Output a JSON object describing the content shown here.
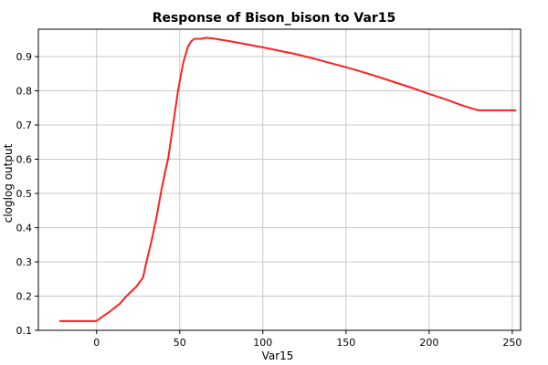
{
  "chart_data": {
    "type": "line",
    "title": "Response of Bison_bison to Var15",
    "xlabel": "Var15",
    "ylabel": "cloglog output",
    "xlim": [
      -35,
      255
    ],
    "ylim": [
      0.1,
      0.98
    ],
    "xticks": [
      0,
      50,
      100,
      150,
      200,
      250
    ],
    "yticks": [
      0.1,
      0.2,
      0.3,
      0.4,
      0.5,
      0.6,
      0.7,
      0.8,
      0.9
    ],
    "grid": true,
    "colors": {
      "line": "#ff2020",
      "grid": "#c8c8c8",
      "axis": "#000000"
    },
    "series": [
      {
        "x": [
          -22,
          0,
          2,
          8,
          14,
          18,
          24,
          28,
          30,
          33,
          36,
          39,
          42,
          43,
          46,
          49,
          52,
          55,
          57,
          59,
          61,
          63,
          66,
          70,
          80,
          90,
          100,
          110,
          120,
          130,
          140,
          150,
          160,
          170,
          180,
          190,
          200,
          210,
          220,
          228,
          230,
          252
        ],
        "y": [
          0.127,
          0.127,
          0.135,
          0.155,
          0.178,
          0.2,
          0.228,
          0.255,
          0.3,
          0.36,
          0.43,
          0.51,
          0.58,
          0.6,
          0.7,
          0.8,
          0.88,
          0.93,
          0.945,
          0.952,
          0.952,
          0.952,
          0.955,
          0.953,
          0.945,
          0.936,
          0.927,
          0.917,
          0.907,
          0.895,
          0.882,
          0.869,
          0.855,
          0.84,
          0.824,
          0.808,
          0.791,
          0.775,
          0.757,
          0.745,
          0.743,
          0.743
        ]
      }
    ]
  }
}
